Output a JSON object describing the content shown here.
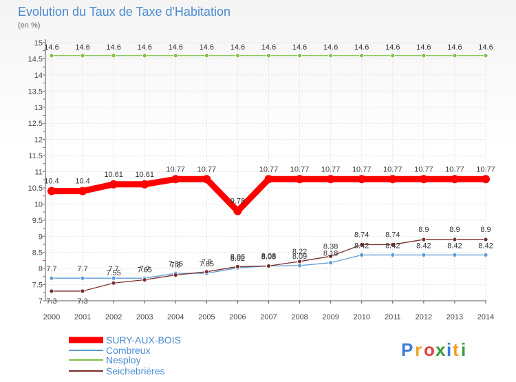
{
  "chart_data": {
    "type": "line",
    "title": "Evolution du Taux de Taxe d'Habitation",
    "ylabel": "(en %)",
    "xlabel": "",
    "ylim": [
      7,
      15
    ],
    "ytick_step": 0.5,
    "y_ticks": [
      "7",
      "7.5",
      "8",
      "8.5",
      "9",
      "9.5",
      "10",
      "10.5",
      "11",
      "11.5",
      "12",
      "12.5",
      "13",
      "13.5",
      "14",
      "14.5",
      "15"
    ],
    "categories": [
      "2000",
      "2001",
      "2002",
      "2003",
      "2004",
      "2005",
      "2006",
      "2007",
      "2008",
      "2009",
      "2010",
      "2011",
      "2012",
      "2013",
      "2014"
    ],
    "grid": true,
    "series": [
      {
        "name": "SURY-AUX-BOIS",
        "color": "#ff0000",
        "values": [
          10.4,
          10.4,
          10.61,
          10.61,
          10.77,
          10.77,
          9.78,
          10.77,
          10.77,
          10.77,
          10.77,
          10.77,
          10.77,
          10.77,
          10.77
        ],
        "labels": [
          "10.4",
          "10.4",
          "10.61",
          "10.61",
          "10.77",
          "10.77",
          "9.78",
          "10.77",
          "10.77",
          "10.77",
          "10.77",
          "10.77",
          "10.77",
          "10.77",
          "10.77"
        ]
      },
      {
        "name": "Combreux",
        "color": "#5b9bd5",
        "values": [
          7.7,
          7.7,
          7.7,
          7.7,
          7.85,
          7.85,
          8.02,
          8.08,
          8.09,
          8.18,
          8.42,
          8.42,
          8.42,
          8.42,
          8.42
        ],
        "labels": [
          "7.7",
          "7.7",
          "7.7",
          "7.7",
          "7.85",
          "7.85",
          "8.02",
          "8.08",
          "8.09",
          "8.18",
          "8.42",
          "8.42",
          "8.42",
          "8.42",
          "8.42"
        ]
      },
      {
        "name": "Nesploy",
        "color": "#7cc143",
        "values": [
          14.6,
          14.6,
          14.6,
          14.6,
          14.6,
          14.6,
          14.6,
          14.6,
          14.6,
          14.6,
          14.6,
          14.6,
          14.6,
          14.6,
          14.6
        ],
        "labels": [
          "14.6",
          "14.6",
          "14.6",
          "14.6",
          "14.6",
          "14.6",
          "14.6",
          "14.6",
          "14.6",
          "14.6",
          "14.6",
          "14.6",
          "14.6",
          "14.6",
          "14.6"
        ]
      },
      {
        "name": "Seichebrières",
        "color": "#7b2c2c",
        "values": [
          7.3,
          7.3,
          7.55,
          7.65,
          7.8,
          7.9,
          8.06,
          8.08,
          8.22,
          8.38,
          8.74,
          8.74,
          8.9,
          8.9,
          8.9
        ],
        "labels": [
          "7.3",
          "7.3",
          "7.55",
          "7.65",
          "7.8",
          "7.9",
          "8.06",
          "8.08",
          "8.22",
          "8.38",
          "8.74",
          "8.74",
          "8.9",
          "8.9",
          "8.9"
        ]
      }
    ]
  },
  "brand": {
    "letters": [
      "P",
      "r",
      "o",
      "x",
      "i",
      "t",
      "i"
    ],
    "colors": [
      "#3a7bd5",
      "#f0a020",
      "#e04040",
      "#3a9a3a",
      "#3a7bd5",
      "#f0a020",
      "#3a9a3a"
    ]
  }
}
